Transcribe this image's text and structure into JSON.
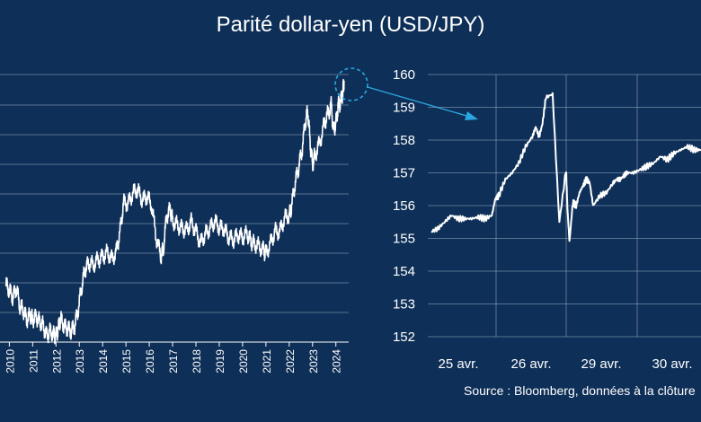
{
  "title": "Parité dollar-yen (USD/JPY)",
  "source": "Source : Bloomberg, données à la clôture",
  "colors": {
    "background": "#0e2f57",
    "line": "#ffffff",
    "grid": "#8aa0bb",
    "accent": "#2aa7e0"
  },
  "chart_data": [
    {
      "type": "line",
      "x_tick_labels": [
        "2010",
        "2011",
        "2012",
        "2013",
        "2014",
        "2015",
        "2016",
        "2017",
        "2018",
        "2019",
        "2020",
        "2021",
        "2022",
        "2023",
        "2024"
      ],
      "ylim": [
        75,
        160
      ],
      "grid": true,
      "series": [
        {
          "x": [
            2009.85,
            2010.0,
            2010.15,
            2010.3,
            2010.45,
            2010.6,
            2010.75,
            2010.9,
            2011.0,
            2011.15,
            2011.3,
            2011.45,
            2011.6,
            2011.75,
            2011.9,
            2012.0,
            2012.1,
            2012.2,
            2012.35,
            2012.5,
            2012.65,
            2012.8,
            2012.95,
            2013.1,
            2013.25,
            2013.4,
            2013.6,
            2013.8,
            2014.0,
            2014.2,
            2014.4,
            2014.6,
            2014.75,
            2014.9,
            2015.1,
            2015.3,
            2015.5,
            2015.7,
            2015.9,
            2016.1,
            2016.3,
            2016.5,
            2016.6,
            2016.75,
            2016.9,
            2017.0,
            2017.2,
            2017.4,
            2017.6,
            2017.8,
            2018.0,
            2018.2,
            2018.4,
            2018.6,
            2018.8,
            2019.0,
            2019.2,
            2019.4,
            2019.6,
            2019.8,
            2020.0,
            2020.2,
            2020.35,
            2020.5,
            2020.7,
            2020.9,
            2021.0,
            2021.2,
            2021.4,
            2021.6,
            2021.8,
            2022.0,
            2022.1,
            2022.25,
            2022.4,
            2022.55,
            2022.7,
            2022.8,
            2022.9,
            2023.0,
            2023.1,
            2023.3,
            2023.5,
            2023.65,
            2023.8,
            2023.9,
            2024.0,
            2024.1,
            2024.2,
            2024.3,
            2024.35
          ],
          "y": [
            93,
            91,
            89,
            92,
            86,
            85,
            82,
            83,
            82,
            83,
            81,
            80,
            77,
            78,
            77,
            77,
            79,
            82,
            80,
            79,
            78,
            80,
            85,
            92,
            98,
            100,
            99,
            101,
            102,
            103,
            101,
            104,
            110,
            119,
            119,
            122,
            123,
            120,
            121,
            118,
            108,
            102,
            104,
            115,
            117,
            113,
            112,
            111,
            110,
            113,
            110,
            106,
            109,
            111,
            113,
            111,
            111,
            108,
            107,
            109,
            108,
            109,
            107,
            106,
            105,
            104,
            103,
            106,
            110,
            110,
            114,
            115,
            118,
            125,
            130,
            136,
            145,
            148,
            138,
            131,
            134,
            138,
            144,
            147,
            150,
            142,
            144,
            150,
            151,
            154,
            157.8
          ]
        }
      ]
    },
    {
      "type": "line",
      "x_tick_labels": [
        "25 avr.",
        "26 avr.",
        "29 avr.",
        "30 avr."
      ],
      "ylim": [
        152,
        160
      ],
      "y_ticks": [
        152,
        153,
        154,
        155,
        156,
        157,
        158,
        159,
        160
      ],
      "grid": true,
      "series": [
        {
          "x": [
            0.0,
            0.1,
            0.2,
            0.3,
            0.4,
            0.5,
            0.6,
            0.7,
            0.8,
            0.9,
            0.95,
            1.0,
            1.1,
            1.2,
            1.3,
            1.4,
            1.5,
            1.55,
            1.6,
            1.65,
            1.7,
            1.8,
            1.9,
            2.0,
            2.02,
            2.05,
            2.1,
            2.15,
            2.2,
            2.25,
            2.3,
            2.35,
            2.4,
            2.5,
            2.6,
            2.7,
            2.75,
            2.8,
            2.85,
            2.9,
            3.0,
            3.1,
            3.2,
            3.3,
            3.4,
            3.5,
            3.6,
            3.7,
            3.8,
            3.9,
            4.0
          ],
          "y": [
            155.2,
            155.3,
            155.5,
            155.7,
            155.6,
            155.6,
            155.6,
            155.65,
            155.6,
            155.7,
            156.2,
            156.3,
            156.8,
            157.0,
            157.3,
            157.8,
            158.1,
            158.4,
            158.1,
            158.5,
            159.3,
            159.4,
            155.5,
            157.1,
            155.9,
            154.9,
            156.1,
            156.0,
            156.4,
            156.6,
            156.8,
            156.7,
            156.0,
            156.3,
            156.4,
            156.7,
            156.8,
            156.8,
            156.9,
            157.0,
            157.0,
            157.1,
            157.2,
            157.3,
            157.5,
            157.4,
            157.6,
            157.7,
            157.8,
            157.7,
            157.7
          ]
        }
      ]
    }
  ]
}
